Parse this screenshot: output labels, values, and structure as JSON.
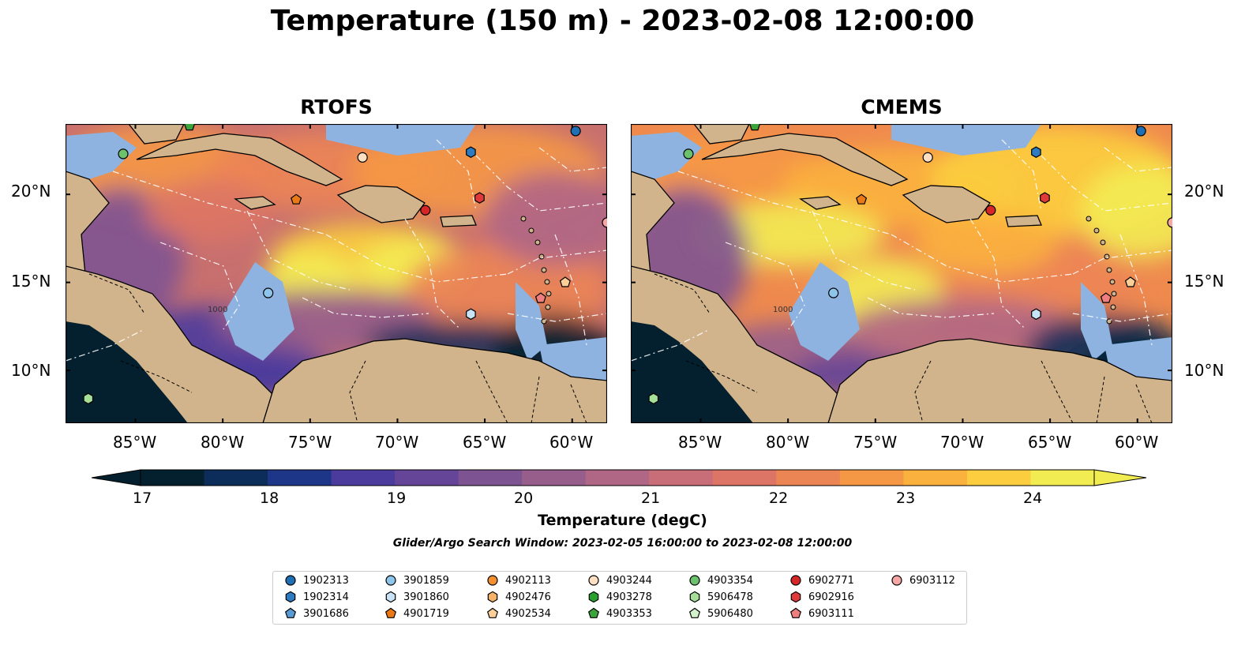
{
  "title": "Temperature (150 m) - 2023-02-08 12:00:00",
  "panels": [
    {
      "title": "RTOFS"
    },
    {
      "title": "CMEMS"
    }
  ],
  "map": {
    "lon_ticks": [
      "85°W",
      "80°W",
      "75°W",
      "70°W",
      "65°W",
      "60°W"
    ],
    "lat_ticks": [
      "20°N",
      "15°N",
      "10°N"
    ],
    "lon_range": [
      -89,
      -58
    ],
    "lat_range": [
      7,
      24
    ],
    "colors": {
      "ocean_shallow": "#8eb3e0",
      "land": "#d2b48c",
      "coast": "#000000"
    },
    "contour_labels": [
      "1000",
      "1000"
    ]
  },
  "colorbar": {
    "label": "Temperature (degC)",
    "ticks": [
      "17",
      "18",
      "19",
      "20",
      "21",
      "22",
      "23",
      "24"
    ],
    "range": [
      17,
      24.5
    ],
    "colors": [
      "#04202e",
      "#0c2d5a",
      "#1e3688",
      "#4b3b9c",
      "#654597",
      "#7e5392",
      "#975e8c",
      "#b06685",
      "#c86e78",
      "#dc7565",
      "#ec8554",
      "#f59845",
      "#fbb13e",
      "#fcce3f",
      "#f2ec53"
    ]
  },
  "search_window": "Glider/Argo Search Window: 2023-02-05 16:00:00 to 2023-02-08 12:00:00",
  "floats": [
    {
      "id": "1902313",
      "color": "#1f6fb4",
      "marker": "circle",
      "lon": -59.8,
      "lat": 23.6
    },
    {
      "id": "1902314",
      "color": "#2d7bc0",
      "marker": "hexagon",
      "lon": -65.8,
      "lat": 22.4
    },
    {
      "id": "3901686",
      "color": "#5a9bd3",
      "marker": "pentagon",
      "lon": null,
      "lat": null
    },
    {
      "id": "3901859",
      "color": "#8ec5ea",
      "marker": "circle",
      "lon": -77.4,
      "lat": 14.4
    },
    {
      "id": "3901860",
      "color": "#c7e3f5",
      "marker": "hexagon",
      "lon": -65.8,
      "lat": 13.2
    },
    {
      "id": "4901719",
      "color": "#ea7a16",
      "marker": "pentagon",
      "lon": -75.8,
      "lat": 19.7
    },
    {
      "id": "4902113",
      "color": "#f38f2c",
      "marker": "circle",
      "lon": null,
      "lat": null
    },
    {
      "id": "4902476",
      "color": "#f7b26a",
      "marker": "hexagon",
      "lon": null,
      "lat": null
    },
    {
      "id": "4902534",
      "color": "#fbcf98",
      "marker": "pentagon",
      "lon": -60.4,
      "lat": 15.0
    },
    {
      "id": "4903244",
      "color": "#fde0c4",
      "marker": "circle",
      "lon": -72.0,
      "lat": 22.1
    },
    {
      "id": "4903278",
      "color": "#2ca02c",
      "marker": "hexagon",
      "lon": null,
      "lat": null
    },
    {
      "id": "4903353",
      "color": "#3aa43a",
      "marker": "pentagon",
      "lon": -81.9,
      "lat": 23.9
    },
    {
      "id": "4903354",
      "color": "#6cc26c",
      "marker": "circle",
      "lon": -85.7,
      "lat": 22.3
    },
    {
      "id": "5906478",
      "color": "#a6df98",
      "marker": "hexagon",
      "lon": -87.7,
      "lat": 8.4
    },
    {
      "id": "5906480",
      "color": "#d3f2cb",
      "marker": "pentagon",
      "lon": null,
      "lat": null
    },
    {
      "id": "6902771",
      "color": "#d62728",
      "marker": "circle",
      "lon": -68.4,
      "lat": 19.1
    },
    {
      "id": "6902916",
      "color": "#e0393a",
      "marker": "hexagon",
      "lon": -65.3,
      "lat": 19.8
    },
    {
      "id": "6903111",
      "color": "#ef7f7e",
      "marker": "pentagon",
      "lon": -61.8,
      "lat": 14.1
    },
    {
      "id": "6903112",
      "color": "#f7a6a6",
      "marker": "circle",
      "lon": -58.0,
      "lat": 18.4
    }
  ]
}
